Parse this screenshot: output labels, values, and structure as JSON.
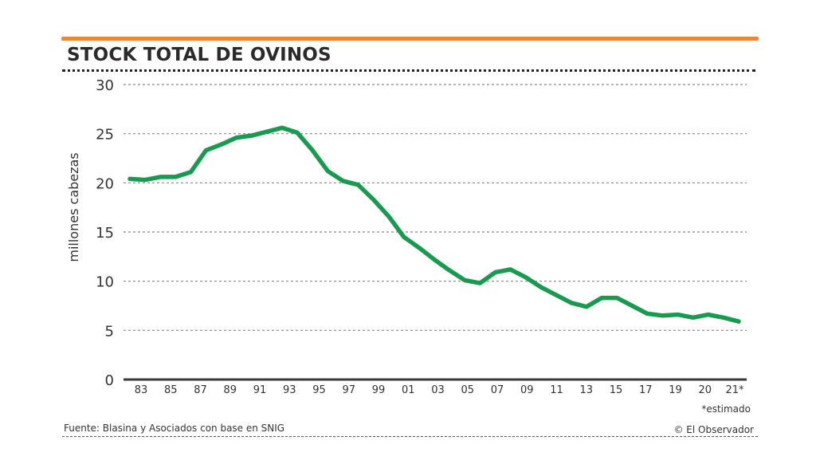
{
  "header": {
    "title": "STOCK TOTAL DE OVINOS",
    "accent_color": "#e8883a"
  },
  "footer": {
    "source": "Fuente: Blasina y Asociados con base en SNIG",
    "estimate_note": "*estimado",
    "credit": "© El Observador"
  },
  "chart_data": {
    "type": "line",
    "title": "STOCK TOTAL DE OVINOS",
    "xlabel": "",
    "ylabel": "millones cabezas",
    "ylim": [
      0,
      30
    ],
    "yticks": [
      "0",
      "5",
      "10",
      "15",
      "20",
      "25",
      "30"
    ],
    "xtick_labels": [
      "83",
      "85",
      "87",
      "89",
      "91",
      "93",
      "95",
      "97",
      "99",
      "01",
      "03",
      "05",
      "07",
      "09",
      "11",
      "13",
      "15",
      "17",
      "19",
      "20",
      "21*"
    ],
    "grid": true,
    "legend": "none",
    "line_color": "#1a9a50",
    "series": [
      {
        "name": "Stock total de ovinos",
        "x": [
          1981,
          1982,
          1983,
          1984,
          1985,
          1986,
          1987,
          1988,
          1989,
          1990,
          1991,
          1992,
          1993,
          1994,
          1995,
          1996,
          1997,
          1998,
          1999,
          2000,
          2001,
          2002,
          2003,
          2004,
          2005,
          2006,
          2007,
          2008,
          2009,
          2010,
          2011,
          2012,
          2013,
          2014,
          2015,
          2016,
          2017,
          2018,
          2019,
          2020,
          2021
        ],
        "values": [
          20.4,
          20.3,
          20.6,
          20.6,
          21.1,
          23.3,
          23.9,
          24.6,
          24.8,
          25.2,
          25.6,
          25.1,
          23.3,
          21.2,
          20.2,
          19.8,
          18.3,
          16.6,
          14.5,
          13.4,
          12.2,
          11.1,
          10.1,
          9.8,
          10.9,
          11.2,
          10.4,
          9.4,
          8.6,
          7.8,
          7.4,
          8.3,
          8.3,
          7.5,
          6.7,
          6.5,
          6.6,
          6.3,
          6.6,
          6.3,
          5.9
        ]
      }
    ],
    "annotations": [
      "*estimado"
    ]
  }
}
